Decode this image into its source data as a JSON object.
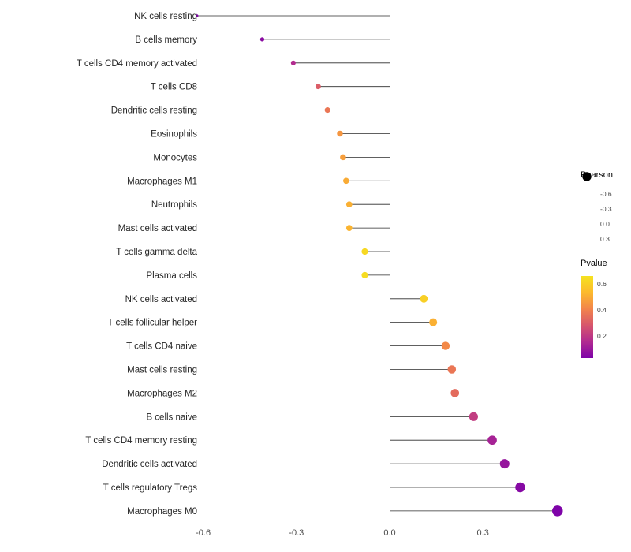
{
  "chart_data": {
    "type": "lollipop",
    "orientation": "horizontal",
    "title": "",
    "xlabel": "",
    "ylabel": "",
    "background": "#ffffff",
    "stem_color": "#2b2b2b",
    "label_color": "#262626",
    "tick_color": "#4d4d4d",
    "xlim": [
      -0.66,
      0.58
    ],
    "x_ticks": [
      {
        "value": -0.6,
        "label": "-0.6"
      },
      {
        "value": -0.3,
        "label": "-0.3"
      },
      {
        "value": 0.0,
        "label": "0.0"
      },
      {
        "value": 0.3,
        "label": "0.3"
      }
    ],
    "points": [
      {
        "label": "NK cells resting",
        "pearson": -0.62,
        "pvalue": 0.01
      },
      {
        "label": "B cells memory",
        "pearson": -0.41,
        "pvalue": 0.06
      },
      {
        "label": "T cells CD4 memory activated",
        "pearson": -0.31,
        "pvalue": 0.16
      },
      {
        "label": "T cells CD8",
        "pearson": -0.23,
        "pvalue": 0.3
      },
      {
        "label": "Dendritic cells resting",
        "pearson": -0.2,
        "pvalue": 0.37
      },
      {
        "label": "Eosinophils",
        "pearson": -0.16,
        "pvalue": 0.45
      },
      {
        "label": "Monocytes",
        "pearson": -0.15,
        "pvalue": 0.47
      },
      {
        "label": "Macrophages M1",
        "pearson": -0.14,
        "pvalue": 0.5
      },
      {
        "label": "Neutrophils",
        "pearson": -0.13,
        "pvalue": 0.51
      },
      {
        "label": "Mast cells activated",
        "pearson": -0.13,
        "pvalue": 0.52
      },
      {
        "label": "T cells gamma delta",
        "pearson": -0.08,
        "pvalue": 0.63
      },
      {
        "label": "Plasma cells",
        "pearson": -0.08,
        "pvalue": 0.64
      },
      {
        "label": "NK cells activated",
        "pearson": 0.11,
        "pvalue": 0.6
      },
      {
        "label": "T cells follicular helper",
        "pearson": 0.14,
        "pvalue": 0.51
      },
      {
        "label": "T cells CD4 naive",
        "pearson": 0.18,
        "pvalue": 0.42
      },
      {
        "label": "Mast cells resting",
        "pearson": 0.2,
        "pvalue": 0.37
      },
      {
        "label": "Macrophages M2",
        "pearson": 0.21,
        "pvalue": 0.34
      },
      {
        "label": "B cells naive",
        "pearson": 0.27,
        "pvalue": 0.21
      },
      {
        "label": "T cells CD4 memory resting",
        "pearson": 0.33,
        "pvalue": 0.13
      },
      {
        "label": "Dendritic cells activated",
        "pearson": 0.37,
        "pvalue": 0.09
      },
      {
        "label": "T cells regulatory Tregs",
        "pearson": 0.42,
        "pvalue": 0.05
      },
      {
        "label": "Macrophages M0",
        "pearson": 0.54,
        "pvalue": 0.01
      }
    ],
    "size_legend": {
      "title": "Pearson",
      "entries": [
        {
          "value": -0.6,
          "label": "-0.6"
        },
        {
          "value": -0.3,
          "label": "-0.3"
        },
        {
          "value": 0.0,
          "label": "0.0"
        },
        {
          "value": 0.3,
          "label": "0.3"
        }
      ],
      "dot_color": "#000000"
    },
    "color_legend": {
      "title": "Pvalue",
      "domain": [
        0.03,
        0.66
      ],
      "ticks": [
        {
          "value": 0.6,
          "label": "0.6"
        },
        {
          "value": 0.4,
          "label": "0.4"
        },
        {
          "value": 0.2,
          "label": "0.2"
        }
      ],
      "gradient": [
        {
          "t": 0.0,
          "color": "#7e03a8"
        },
        {
          "t": 0.2,
          "color": "#b12a90"
        },
        {
          "t": 0.4,
          "color": "#d7566c"
        },
        {
          "t": 0.6,
          "color": "#f2844b"
        },
        {
          "t": 0.8,
          "color": "#fcba2d"
        },
        {
          "t": 1.0,
          "color": "#f5e21f"
        }
      ]
    }
  }
}
